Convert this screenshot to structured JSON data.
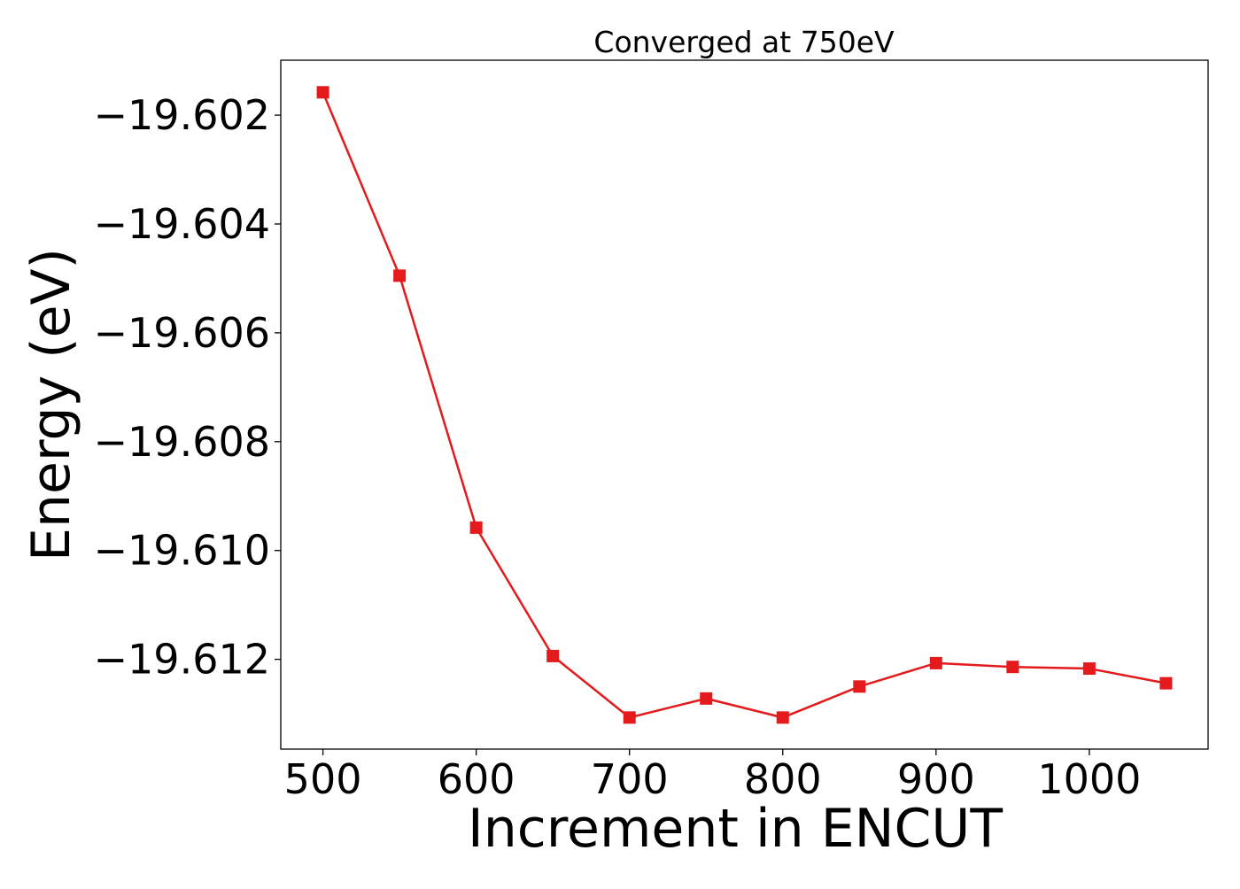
{
  "chart_data": {
    "type": "line",
    "title": "Converged at 750eV",
    "xlabel": "Increment in ENCUT",
    "ylabel": "Energy (eV)",
    "x": [
      500,
      550,
      600,
      650,
      700,
      750,
      800,
      850,
      900,
      950,
      1000,
      1050
    ],
    "series": [
      {
        "values": [
          -19.60158,
          -19.60495,
          -19.60958,
          -19.61194,
          -19.61307,
          -19.61272,
          -19.61307,
          -19.6125,
          -19.61207,
          -19.61214,
          -19.61217,
          -19.61244
        ],
        "color": "#e41a1c",
        "marker": "square"
      }
    ],
    "xlim": [
      472.5,
      1077.5
    ],
    "ylim": [
      -19.61365,
      -19.60099
    ],
    "xticks": [
      500,
      600,
      700,
      800,
      900,
      1000
    ],
    "xtick_labels": [
      "500",
      "600",
      "700",
      "800",
      "900",
      "1000"
    ],
    "yticks": [
      -19.602,
      -19.604,
      -19.606,
      -19.608,
      -19.61,
      -19.612
    ],
    "ytick_labels": [
      "−19.602",
      "−19.604",
      "−19.606",
      "−19.608",
      "−19.610",
      "−19.612"
    ],
    "grid": false,
    "legend": "none"
  }
}
